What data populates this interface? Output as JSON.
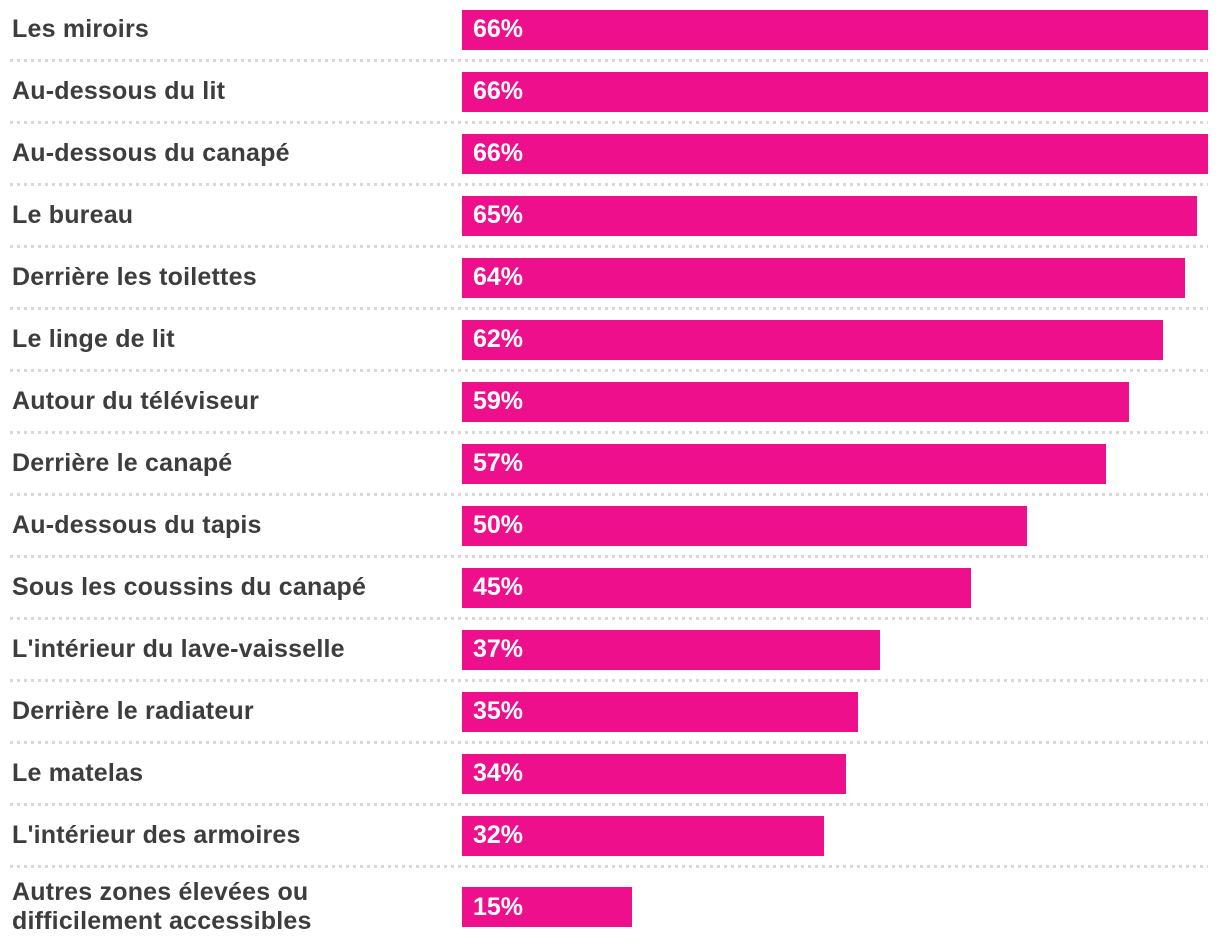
{
  "chart_data": {
    "type": "bar",
    "orientation": "horizontal",
    "title": "",
    "xlabel": "",
    "ylabel": "",
    "xlim": [
      0,
      66
    ],
    "grid": "dotted-row-separators",
    "legend": "none",
    "value_suffix": "%",
    "categories": [
      "Les miroirs",
      "Au-dessous du lit",
      "Au-dessous du canapé",
      "Le bureau",
      "Derrière les toilettes",
      "Le linge de lit",
      "Autour du téléviseur",
      "Derrière le canapé",
      "Au-dessous du tapis",
      "Sous les coussins du canapé",
      "L'intérieur du lave-vaisselle",
      "Derrière le radiateur",
      "Le matelas",
      "L'intérieur des armoires",
      "Autres zones élevées ou difficilement accessibles"
    ],
    "values": [
      66,
      66,
      66,
      65,
      64,
      62,
      59,
      57,
      50,
      45,
      37,
      35,
      34,
      32,
      15
    ],
    "value_labels": [
      "66%",
      "66%",
      "66%",
      "65%",
      "64%",
      "62%",
      "59%",
      "57%",
      "50%",
      "45%",
      "37%",
      "35%",
      "34%",
      "32%",
      "15%"
    ],
    "colors": {
      "bar": "#ee0f8d",
      "label": "#3d3d3d",
      "value_label": "#ffffff",
      "separator": "#d8d8d8",
      "background": "#ffffff"
    }
  }
}
